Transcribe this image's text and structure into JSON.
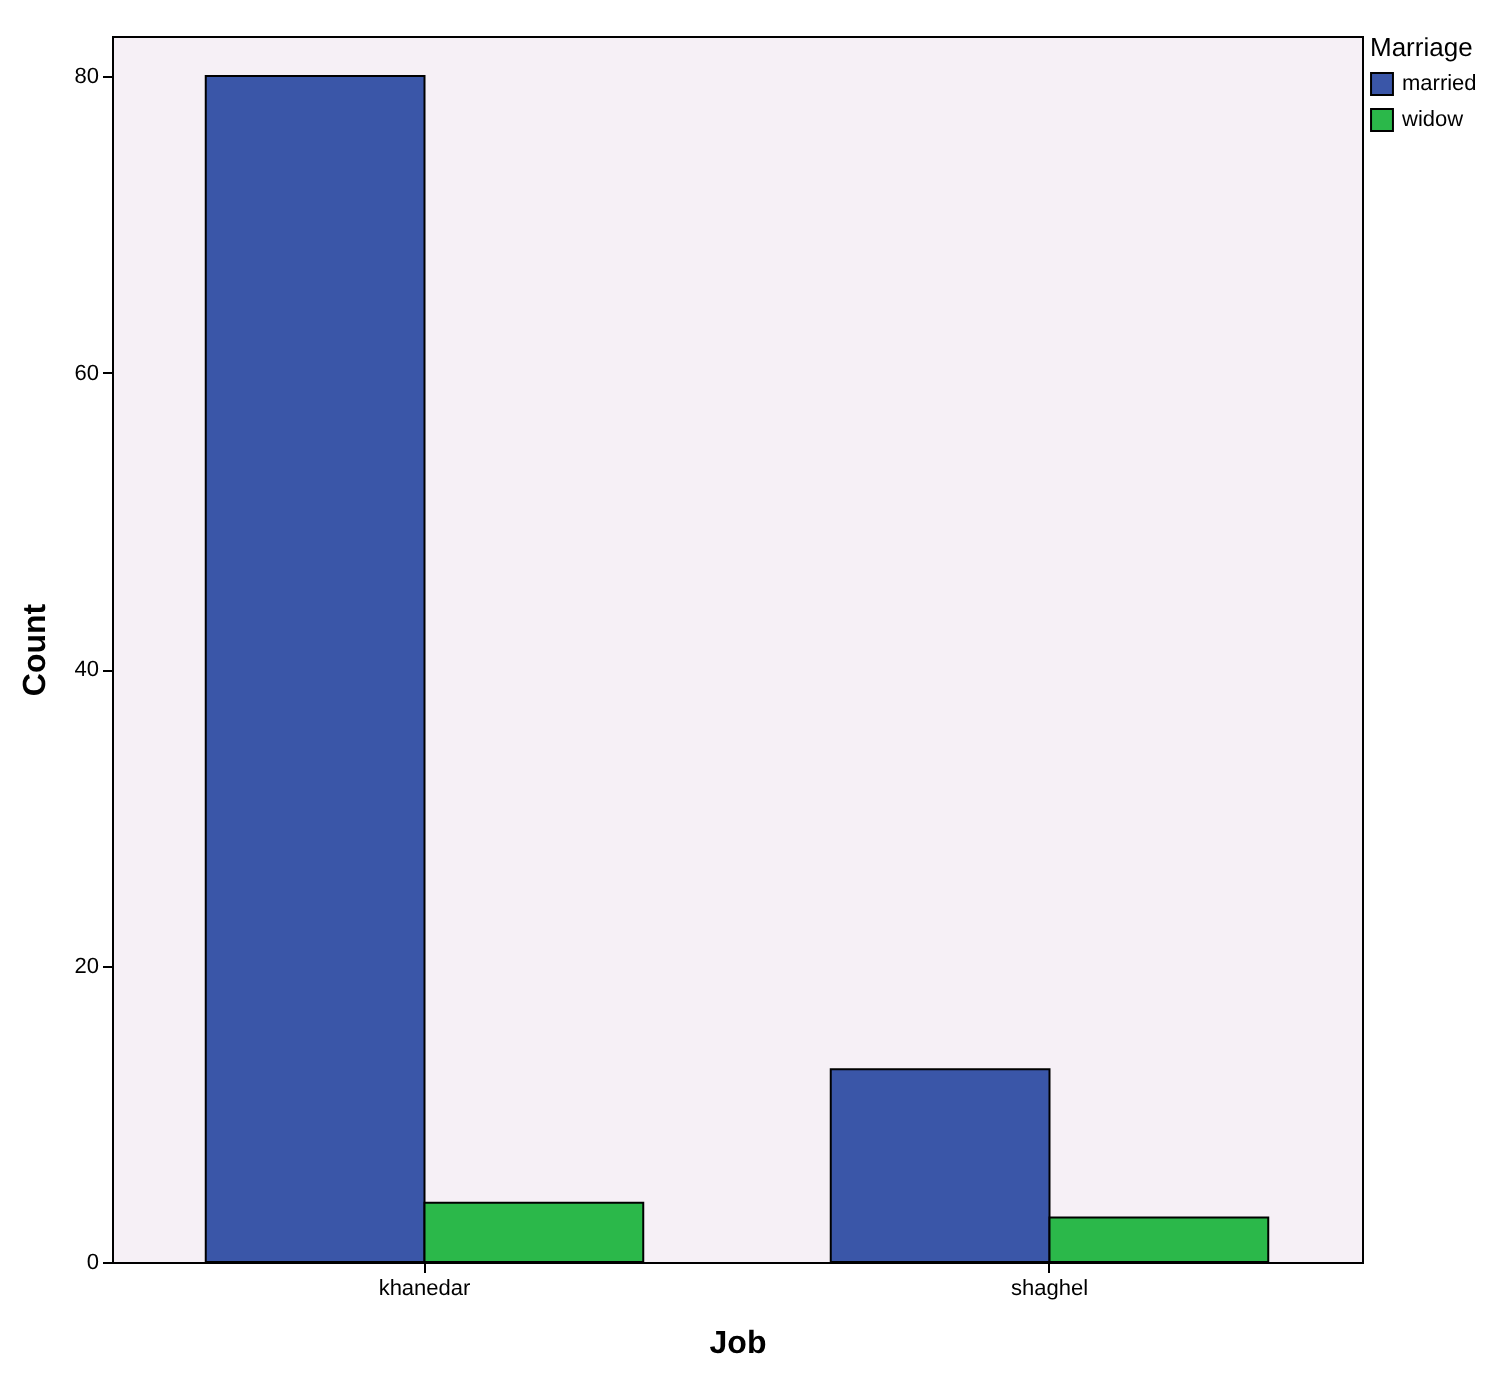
{
  "chart_data": {
    "type": "bar",
    "xlabel": "Job",
    "ylabel": "Count",
    "legend_title": "Marriage",
    "categories": [
      "khanedar",
      "shaghel"
    ],
    "series": [
      {
        "name": "married",
        "color": "#3a56a8",
        "values": [
          80,
          13
        ]
      },
      {
        "name": "widow",
        "color": "#2bb84a",
        "values": [
          4,
          3
        ]
      }
    ],
    "ylim": [
      0,
      82.7
    ],
    "yticks": [
      0,
      20,
      40,
      60,
      80
    ],
    "grid": false,
    "legend": "top right"
  }
}
